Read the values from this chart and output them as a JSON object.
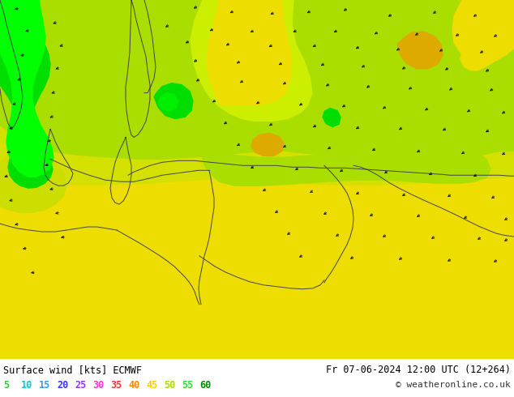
{
  "title_left": "Surface wind [kts] ECMWF",
  "title_right": "Fr 07-06-2024 12:00 UTC (12+264)",
  "copyright": "© weatheronline.co.uk",
  "legend_values": [
    "5",
    "10",
    "15",
    "20",
    "25",
    "30",
    "35",
    "40",
    "45",
    "50",
    "55",
    "60"
  ],
  "legend_colors": [
    "#33cc33",
    "#00cccc",
    "#3399ff",
    "#3333ff",
    "#9933ff",
    "#ff33cc",
    "#ff3333",
    "#ff8800",
    "#ffcc00",
    "#aadd00",
    "#33dd33",
    "#008800"
  ],
  "background_color": "#ffffff",
  "fig_width": 6.34,
  "fig_height": 4.9,
  "dpi": 100,
  "bottom_bar_height": 0.095,
  "map_base_color": "#d4e800",
  "coastline_color": "#444444",
  "coastline_lw": 0.7,
  "arrow_color": "#111111",
  "colors": {
    "bright_green": "#00ee00",
    "mid_green": "#22dd00",
    "yellow_green": "#aaee00",
    "light_yellow_green": "#ccee00",
    "yellow": "#eedd00",
    "dark_yellow": "#ccbb00",
    "orange": "#ddaa00",
    "orange2": "#cc8800"
  }
}
